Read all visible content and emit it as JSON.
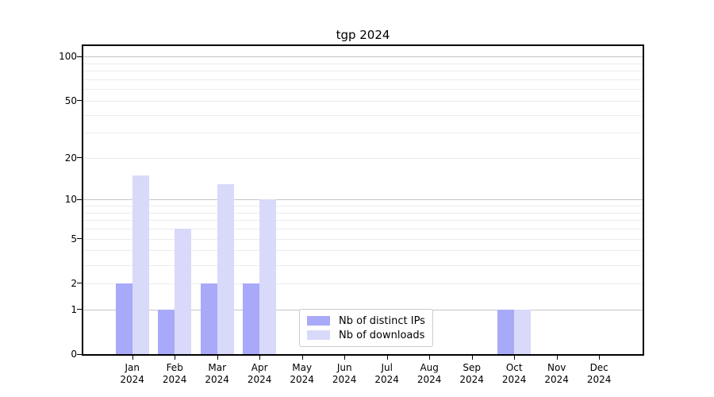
{
  "chart_data": {
    "type": "bar",
    "title": "tgp 2024",
    "xlabel": "",
    "ylabel": "",
    "categories": [
      "Jan 2024",
      "Feb 2024",
      "Mar 2024",
      "Apr 2024",
      "May 2024",
      "Jun 2024",
      "Jul 2024",
      "Aug 2024",
      "Sep 2024",
      "Oct 2024",
      "Nov 2024",
      "Dec 2024"
    ],
    "x_months": [
      "Jan",
      "Feb",
      "Mar",
      "Apr",
      "May",
      "Jun",
      "Jul",
      "Aug",
      "Sep",
      "Oct",
      "Nov",
      "Dec"
    ],
    "x_year": "2024",
    "series": [
      {
        "name": "Nb of distinct IPs",
        "color": "#a9a9f9",
        "values": [
          2,
          1,
          2,
          2,
          0,
          0,
          0,
          0,
          0,
          1,
          0,
          0
        ]
      },
      {
        "name": "Nb of downloads",
        "color": "#d9d9f9",
        "values": [
          15,
          6,
          13,
          10,
          0,
          0,
          0,
          0,
          0,
          1,
          0,
          0
        ]
      }
    ],
    "yaxis": {
      "scale": "log10(value+1)",
      "tick_labels": [
        0,
        1,
        2,
        5,
        10,
        20,
        50,
        100
      ],
      "decade_gridlines": [
        1,
        10,
        100
      ],
      "minor_gridlines": [
        2,
        3,
        4,
        5,
        6,
        7,
        8,
        9,
        20,
        30,
        40,
        50,
        60,
        70,
        80,
        90
      ],
      "ylim": [
        0,
        118
      ]
    },
    "grid": true,
    "legend_position": "lower center"
  },
  "colors": {
    "background": "#ffffff",
    "spine": "#000000",
    "grid_major": "#c6c6c6",
    "grid_minor": "#ececec",
    "bar_distinct_ips": "#a9a9f9",
    "bar_downloads": "#d9d9f9",
    "legend_border": "#cccccc"
  }
}
